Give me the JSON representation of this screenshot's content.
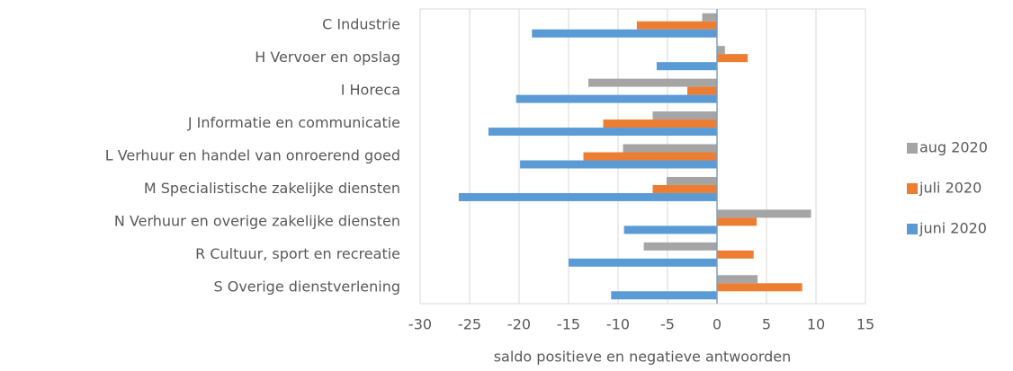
{
  "chart_data": {
    "type": "bar",
    "orientation": "horizontal",
    "x_label": "saldo positieve en negatieve antwoorden",
    "categories": [
      "C Industrie",
      "H Vervoer en opslag",
      "I Horeca",
      "J Informatie en communicatie",
      "L Verhuur en handel van onroerend goed",
      "M Specialistische zakelijke diensten",
      "N Verhuur en overige zakelijke diensten",
      "R Cultuur, sport en recreatie",
      "S Overige dienstverlening"
    ],
    "series": [
      {
        "name": "aug 2020",
        "color": "#a5a5a5",
        "values": [
          -1.5,
          0.8,
          -13,
          -6.5,
          -9.5,
          -5.1,
          9.5,
          -7.4,
          4.1
        ]
      },
      {
        "name": "juli 2020",
        "color": "#ed7d31",
        "values": [
          -8.1,
          3.1,
          -3,
          -11.5,
          -13.5,
          -6.5,
          4.0,
          3.7,
          8.6
        ]
      },
      {
        "name": "juni 2020",
        "color": "#5b9bd5",
        "values": [
          -18.7,
          -6.1,
          -20.3,
          -23.1,
          -19.9,
          -26.1,
          -9.4,
          -15.0,
          -10.7
        ]
      }
    ],
    "xlim": [
      -30,
      15
    ],
    "xticks": [
      -30,
      -25,
      -20,
      -15,
      -10,
      -5,
      0,
      5,
      10,
      15
    ],
    "grid": true,
    "legend": "right"
  }
}
